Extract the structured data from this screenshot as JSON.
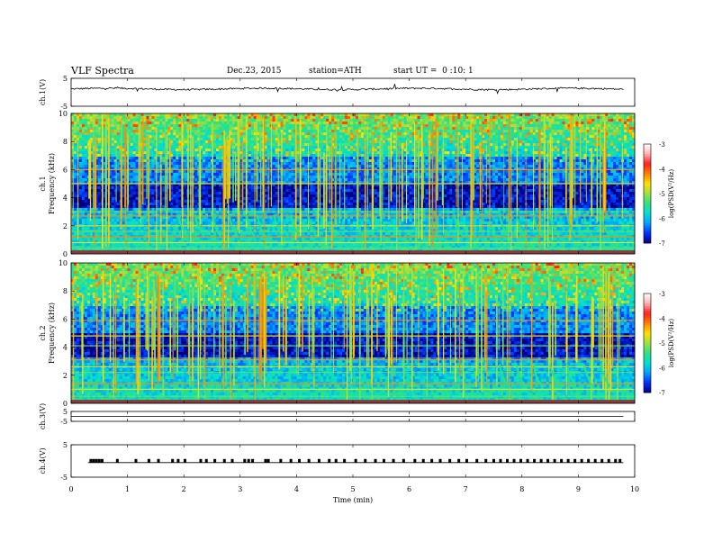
{
  "header": {
    "title": "VLF Spectra",
    "date": "Dec.23, 2015",
    "station": "station=ATH",
    "start": "start UT =  0 :10: 1"
  },
  "chart_data": {
    "type": "heatmap",
    "x": {
      "label": "Time (min)",
      "range": [
        0,
        10
      ],
      "ticks": [
        "0",
        "1",
        "2",
        "3",
        "4",
        "5",
        "6",
        "7",
        "8",
        "9",
        "10"
      ]
    },
    "panels": [
      {
        "ylabel": "ch.1(V)",
        "kind": "waveform",
        "ylim": [
          -5,
          5
        ],
        "ticks": [
          "5",
          "-5"
        ],
        "mean": 1.2,
        "noise": 0.6
      },
      {
        "ylabel": "ch.1",
        "ylabel2": "Frequency (kHz)",
        "kind": "spectrogram",
        "ylim": [
          0,
          10
        ],
        "ticks": [
          "0",
          "2",
          "4",
          "6",
          "8",
          "10"
        ],
        "bands_khz": [
          0.4,
          0.8,
          1.2,
          1.6,
          2.0,
          2.7,
          3.0,
          5.0,
          6.0
        ],
        "dispersed_whistlers_min": [
          1.9,
          2.2,
          2.5,
          2.8,
          3.1,
          3.3,
          3.6,
          3.9,
          4.2,
          6.8,
          7.6,
          7.9,
          8.2,
          8.5,
          8.8,
          9.1,
          9.4
        ]
      },
      {
        "ylabel": "ch.2",
        "ylabel2": "Frequency (kHz)",
        "kind": "spectrogram",
        "ylim": [
          0,
          10
        ],
        "ticks": [
          "0",
          "2",
          "4",
          "6",
          "8",
          "10"
        ],
        "bands_khz": [
          0.5,
          1.0,
          1.4,
          2.2,
          2.6,
          3.1,
          4.1,
          4.8,
          5.9
        ],
        "dispersed_whistlers_min": [
          7.6,
          7.9,
          8.2,
          8.5,
          8.8,
          9.1,
          9.4
        ]
      },
      {
        "ylabel": "ch.3(V)",
        "kind": "flat",
        "ylim": [
          -5,
          5
        ],
        "ticks": [
          "5",
          "-5"
        ],
        "mean": -0.1
      },
      {
        "ylabel": "ch.4(V)",
        "kind": "pulses",
        "ylim": [
          -5,
          5
        ],
        "ticks": [
          "5",
          "-5"
        ],
        "baseline": -0.5,
        "pulse_times_min": [
          0.35,
          0.4,
          0.45,
          0.5,
          0.55,
          0.82,
          1.15,
          1.38,
          1.55,
          1.8,
          1.9,
          2.02,
          2.3,
          2.4,
          2.55,
          2.72,
          2.86,
          3.08,
          3.15,
          3.22,
          3.45,
          3.5,
          3.72,
          3.9,
          4.05,
          4.22,
          4.4,
          4.58,
          4.7,
          4.85,
          5.05,
          5.22,
          5.4,
          5.55,
          5.72,
          5.9,
          6.1,
          6.25,
          6.4,
          6.55,
          6.72,
          6.88,
          7.02,
          7.2,
          7.36,
          7.5,
          7.62,
          7.74,
          7.86,
          7.98,
          8.1,
          8.22,
          8.34,
          8.46,
          8.58,
          8.7,
          8.82,
          8.94,
          9.06,
          9.18,
          9.3,
          9.42,
          9.54,
          9.66,
          9.74
        ]
      }
    ],
    "colorbars": [
      {
        "label": "log(PSD(V²/Hz)",
        "range": [
          -7,
          -3
        ],
        "ticks": [
          "-3",
          "-4",
          "-5",
          "-6",
          "-7"
        ],
        "colors": [
          "#000080",
          "#0030ff",
          "#00a0ff",
          "#00e0d0",
          "#30e080",
          "#a0e040",
          "#ffe000",
          "#ff8000",
          "#ff2020",
          "#ffb0b0",
          "#ffffff"
        ]
      },
      {
        "label": "log(PSD(V²/Hz)",
        "range": [
          -7,
          -3
        ],
        "ticks": [
          "-3",
          "-4",
          "-5",
          "-6",
          "-7"
        ],
        "colors": [
          "#000080",
          "#0030ff",
          "#00a0ff",
          "#00e0d0",
          "#30e080",
          "#a0e040",
          "#ffe000",
          "#ff8000",
          "#ff2020",
          "#ffb0b0",
          "#ffffff"
        ]
      }
    ]
  }
}
